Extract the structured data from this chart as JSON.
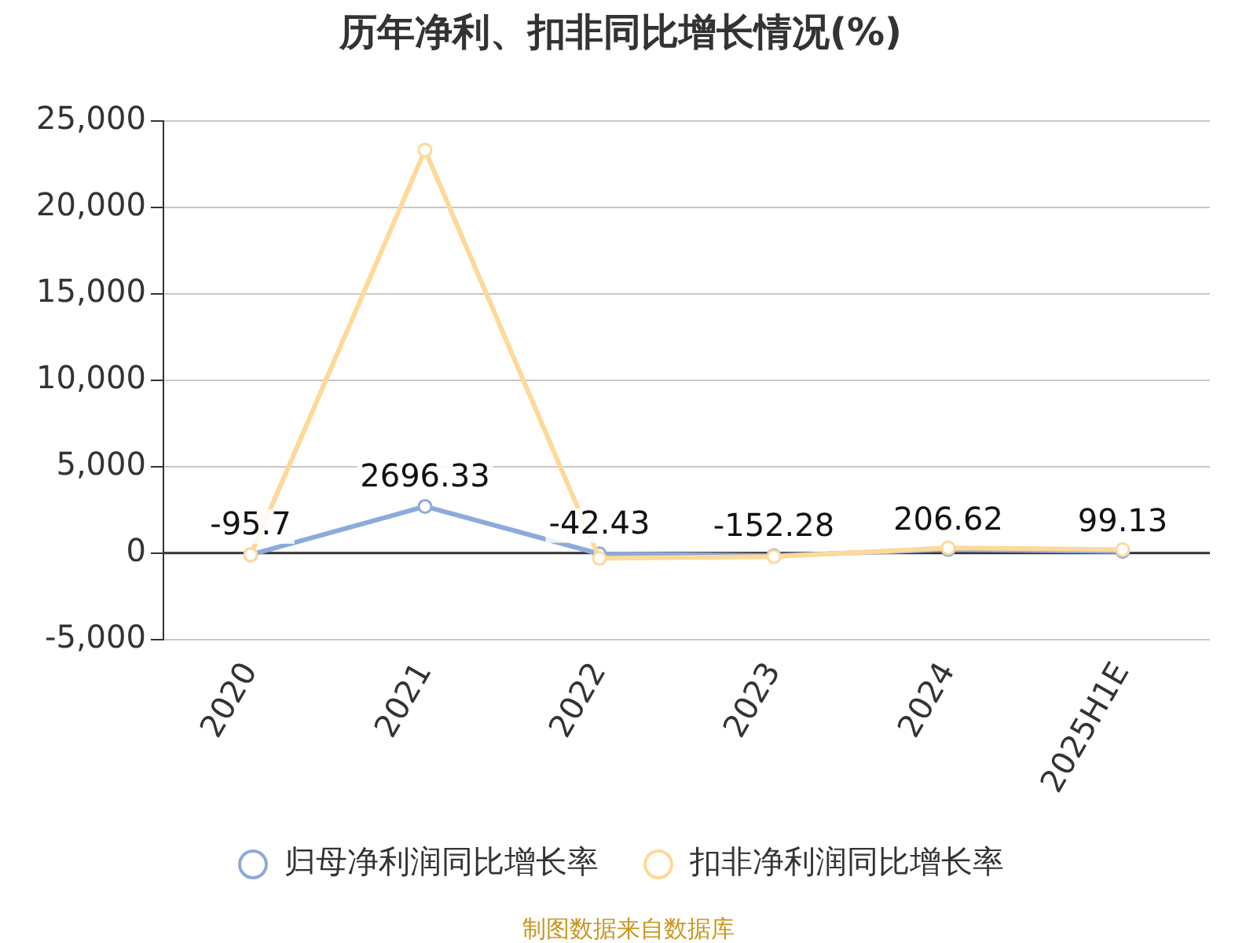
{
  "chart_data": {
    "type": "line",
    "title": "历年净利、扣非同比增长情况(%)",
    "categories": [
      "2020",
      "2021",
      "2022",
      "2023",
      "2024",
      "2025H1E"
    ],
    "series": [
      {
        "name": "归母净利润同比增长率",
        "color": "#8eaadb",
        "values": [
          -95.7,
          2696.33,
          -42.43,
          -152.28,
          206.62,
          99.13
        ],
        "value_labels": [
          "-95.7",
          "2696.33",
          "-42.43",
          "-152.28",
          "206.62",
          "99.13"
        ]
      },
      {
        "name": "扣非净利润同比增长率",
        "color": "#ffd999",
        "values": [
          -100,
          23300,
          -300,
          -200,
          300,
          200
        ]
      }
    ],
    "ylim": [
      -5000,
      25000
    ],
    "yticks": [
      {
        "value": -5000,
        "label": "-5,000"
      },
      {
        "value": 0,
        "label": "0"
      },
      {
        "value": 5000,
        "label": "5,000"
      },
      {
        "value": 10000,
        "label": "10,000"
      },
      {
        "value": 15000,
        "label": "15,000"
      },
      {
        "value": 20000,
        "label": "20,000"
      },
      {
        "value": 25000,
        "label": "25,000"
      }
    ],
    "ref_lines": [
      {
        "axis": "y",
        "value": 0,
        "color": "#333333"
      }
    ],
    "grid": "y",
    "legend": "bottom",
    "marker": "circle",
    "line_style": "solid",
    "annotations": [
      "制图数据来自数据库"
    ]
  }
}
